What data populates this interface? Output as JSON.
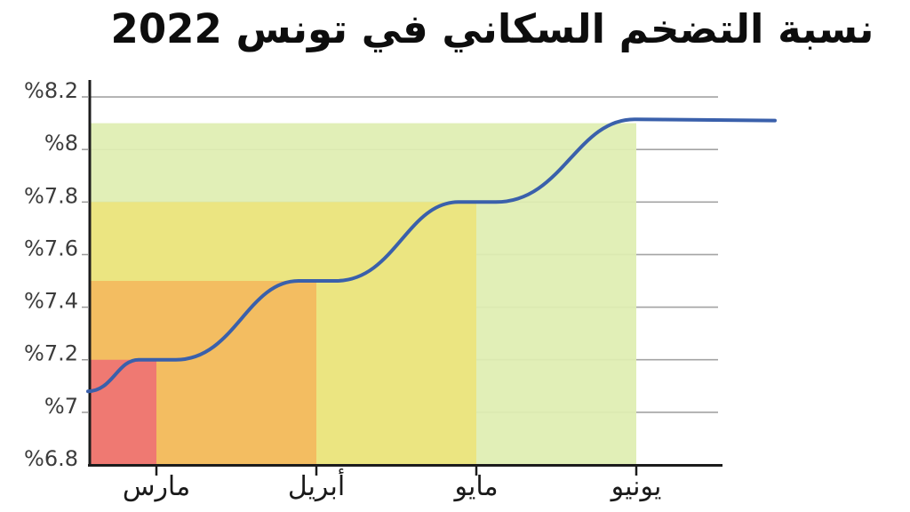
{
  "chart_data": {
    "type": "line",
    "title": "نسبة التضخم السكاني في تونس 2022",
    "categories": [
      "مارس",
      "أبريل",
      "مايو",
      "يونيو"
    ],
    "values": [
      7.2,
      7.5,
      7.8,
      8.1
    ],
    "series": [
      {
        "name": "inflation-rate",
        "values": [
          7.2,
          7.5,
          7.8,
          8.1
        ]
      }
    ],
    "series_start_value": 7.08,
    "series_end_value": 8.11,
    "series_peak_value": 8.115,
    "ylim": [
      6.8,
      8.2
    ],
    "ylabel": "",
    "xlabel": "",
    "grid": "horizontal",
    "legend_position": "none",
    "yticks": [
      {
        "label": "%8.2",
        "value": 8.2
      },
      {
        "label": "%8",
        "value": 8.0
      },
      {
        "label": "%7.8",
        "value": 7.8
      },
      {
        "label": "%7.6",
        "value": 7.6
      },
      {
        "label": "%7.4",
        "value": 7.4
      },
      {
        "label": "%7.2",
        "value": 7.2
      },
      {
        "label": "%7",
        "value": 7.0
      },
      {
        "label": "%6.8",
        "value": 6.8
      }
    ],
    "regions": [
      {
        "label": "مارس",
        "value": 7.2,
        "color": "#ee7373"
      },
      {
        "label": "أبريل",
        "value": 7.5,
        "color": "#f3ba5f"
      },
      {
        "label": "مايو",
        "value": 7.8,
        "color": "#ece47d"
      },
      {
        "label": "يونيو",
        "value": 8.1,
        "color": "#dfeeb2"
      }
    ],
    "colors": {
      "line": "#3a60ab",
      "grid": "#a3a3a3",
      "axis": "#1c1c1c",
      "tick_label": "#3c3c3c",
      "month_label": "#1a1a1a",
      "background": "#ffffff"
    }
  }
}
